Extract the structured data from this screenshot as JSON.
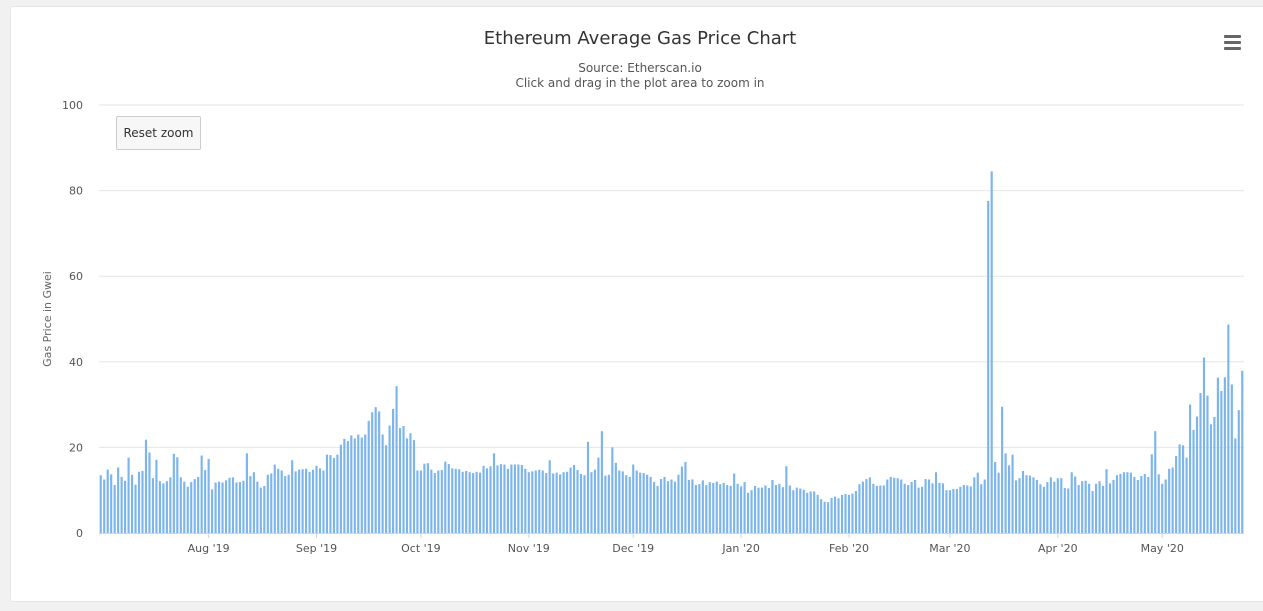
{
  "chart_data": {
    "type": "bar",
    "title": "Ethereum Average Gas Price Chart",
    "subtitle": [
      "Source: Etherscan.io",
      "Click and drag in the plot area to zoom in"
    ],
    "ylabel": "Gas Price in Gwei",
    "ylim": [
      0,
      100
    ],
    "yticks": [
      0,
      20,
      40,
      60,
      80,
      100
    ],
    "x_start": "2019-07-01",
    "xticks": [
      "Aug '19",
      "Sep '19",
      "Oct '19",
      "Nov '19",
      "Dec '19",
      "Jan '20",
      "Feb '20",
      "Mar '20",
      "Apr '20",
      "May '20"
    ],
    "grid": true,
    "bar_color": "#7cb5ec",
    "values": [
      13.5,
      12.5,
      14.8,
      13.7,
      11.2,
      15.3,
      13.1,
      12.2,
      17.6,
      13.6,
      11.3,
      14.3,
      14.5,
      21.8,
      18.8,
      12.8,
      17.1,
      12.1,
      11.6,
      12.1,
      13.0,
      18.5,
      17.7,
      13.0,
      12.0,
      10.8,
      11.9,
      12.6,
      13.1,
      18.1,
      14.7,
      17.3,
      10.2,
      11.8,
      12.0,
      11.8,
      12.3,
      12.9,
      13.0,
      11.8,
      11.9,
      12.2,
      18.6,
      13.3,
      14.2,
      12.0,
      10.6,
      11.0,
      13.6,
      13.9,
      16.0,
      15.0,
      14.6,
      13.3,
      13.6,
      17.0,
      14.4,
      14.8,
      14.9,
      15.0,
      14.3,
      14.8,
      15.7,
      15.1,
      14.6,
      18.3,
      18.2,
      17.5,
      18.3,
      20.6,
      22.0,
      21.5,
      22.8,
      22.1,
      23.0,
      22.3,
      23.0,
      26.2,
      28.2,
      29.4,
      28.4,
      23.0,
      20.5,
      25.1,
      29.0,
      34.3,
      24.5,
      25.0,
      22.1,
      23.3,
      21.7,
      14.6,
      14.6,
      16.2,
      16.3,
      14.8,
      14.0,
      14.6,
      14.7,
      16.7,
      16.1,
      15.1,
      15.0,
      14.9,
      14.3,
      14.5,
      14.2,
      14.0,
      14.3,
      14.1,
      15.7,
      15.1,
      15.6,
      18.6,
      15.8,
      16.1,
      16.0,
      15.0,
      16.0,
      16.0,
      16.0,
      15.9,
      15.0,
      14.2,
      14.4,
      14.6,
      14.8,
      14.6,
      14.0,
      17.0,
      13.9,
      14.1,
      13.7,
      14.2,
      14.3,
      15.3,
      15.9,
      14.7,
      13.8,
      13.5,
      21.3,
      14.2,
      14.8,
      17.6,
      23.8,
      13.4,
      13.6,
      20.0,
      16.4,
      14.6,
      14.4,
      13.5,
      13.1,
      16.0,
      14.6,
      14.1,
      14.0,
      13.6,
      13.1,
      11.9,
      11.0,
      12.6,
      13.1,
      12.1,
      12.5,
      12.0,
      13.6,
      15.5,
      16.6,
      12.4,
      12.5,
      11.2,
      11.4,
      12.3,
      11.2,
      11.9,
      11.7,
      12.0,
      11.4,
      11.7,
      11.2,
      11.0,
      13.9,
      11.5,
      10.9,
      11.9,
      9.4,
      10.0,
      11.0,
      10.6,
      10.6,
      11.1,
      10.5,
      12.4,
      11.2,
      11.5,
      10.7,
      15.6,
      11.1,
      10.0,
      10.6,
      10.4,
      10.1,
      9.4,
      9.7,
      9.7,
      8.9,
      7.9,
      7.3,
      7.2,
      8.2,
      8.5,
      8.1,
      8.9,
      9.1,
      8.9,
      9.2,
      9.8,
      11.4,
      12.0,
      12.6,
      13.0,
      11.5,
      11.0,
      11.1,
      11.1,
      12.5,
      13.1,
      12.9,
      12.8,
      12.5,
      11.5,
      11.2,
      11.9,
      12.4,
      10.6,
      10.8,
      12.6,
      12.5,
      11.6,
      14.2,
      11.7,
      11.6,
      10.0,
      10.0,
      10.3,
      10.3,
      10.8,
      11.2,
      11.1,
      10.9,
      13.0,
      14.1,
      11.4,
      12.5,
      77.6,
      84.5,
      16.6,
      14.1,
      29.5,
      18.6,
      15.8,
      18.3,
      12.3,
      12.8,
      14.5,
      13.5,
      13.4,
      13.0,
      12.4,
      11.4,
      10.8,
      11.9,
      13.0,
      12.0,
      12.8,
      12.8,
      10.5,
      10.4,
      14.2,
      13.2,
      11.2,
      12.1,
      12.2,
      11.5,
      9.8,
      11.5,
      12.1,
      11.0,
      14.9,
      11.6,
      12.4,
      13.5,
      13.8,
      14.2,
      14.2,
      14.1,
      13.1,
      12.4,
      13.3,
      13.8,
      13.1,
      18.4,
      23.8,
      13.7,
      11.5,
      12.5,
      15.0,
      15.3,
      18.0,
      20.7,
      20.5,
      17.6,
      30.0,
      24.1,
      27.2,
      32.7,
      41.0,
      32.1,
      25.4,
      27.1,
      36.3,
      33.2,
      36.4,
      48.7,
      34.7,
      22.1,
      28.7,
      37.9
    ]
  },
  "toolbar": {
    "reset_zoom_label": "Reset zoom",
    "menu_icon": "hamburger-menu-icon"
  }
}
